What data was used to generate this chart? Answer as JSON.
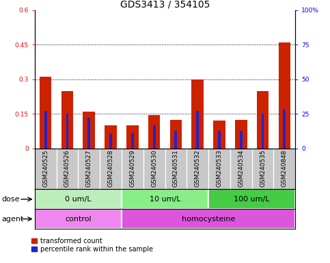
{
  "title": "GDS3413 / 354105",
  "samples": [
    "GSM240525",
    "GSM240526",
    "GSM240527",
    "GSM240528",
    "GSM240529",
    "GSM240530",
    "GSM240531",
    "GSM240532",
    "GSM240533",
    "GSM240534",
    "GSM240535",
    "GSM240848"
  ],
  "red_values": [
    0.31,
    0.25,
    0.16,
    0.1,
    0.1,
    0.145,
    0.125,
    0.3,
    0.122,
    0.125,
    0.25,
    0.46
  ],
  "blue_percentiles": [
    27,
    25,
    22,
    11,
    11,
    17,
    13,
    27,
    13,
    13,
    25,
    28
  ],
  "ylim_left": [
    0,
    0.6
  ],
  "ylim_right": [
    0,
    100
  ],
  "yticks_left": [
    0,
    0.15,
    0.3,
    0.45,
    0.6
  ],
  "ytick_labels_left": [
    "0",
    "0.15",
    "0.3",
    "0.45",
    "0.6"
  ],
  "yticks_right": [
    0,
    25,
    50,
    75,
    100
  ],
  "ytick_labels_right": [
    "0",
    "25",
    "50",
    "75",
    "100%"
  ],
  "hlines": [
    0.15,
    0.3,
    0.45
  ],
  "dose_groups": [
    {
      "label": "0 um/L",
      "start": 0,
      "end": 4
    },
    {
      "label": "10 um/L",
      "start": 4,
      "end": 8
    },
    {
      "label": "100 um/L",
      "start": 8,
      "end": 12
    }
  ],
  "dose_colors": [
    "#BBEEBB",
    "#88EE88",
    "#44CC44"
  ],
  "agent_groups": [
    {
      "label": "control",
      "start": 0,
      "end": 4
    },
    {
      "label": "homocysteine",
      "start": 4,
      "end": 12
    }
  ],
  "agent_colors": [
    "#EE88EE",
    "#DD55DD"
  ],
  "bar_color_red": "#CC2200",
  "bar_color_blue": "#2222CC",
  "red_bar_width": 0.55,
  "blue_bar_width": 0.12,
  "tick_area_color": "#C8C8C8",
  "title_fontsize": 10,
  "tick_fontsize": 6.5,
  "label_fontsize": 8,
  "legend_fontsize": 7,
  "dose_label": "dose",
  "agent_label": "agent",
  "legend_items": [
    "transformed count",
    "percentile rank within the sample"
  ]
}
